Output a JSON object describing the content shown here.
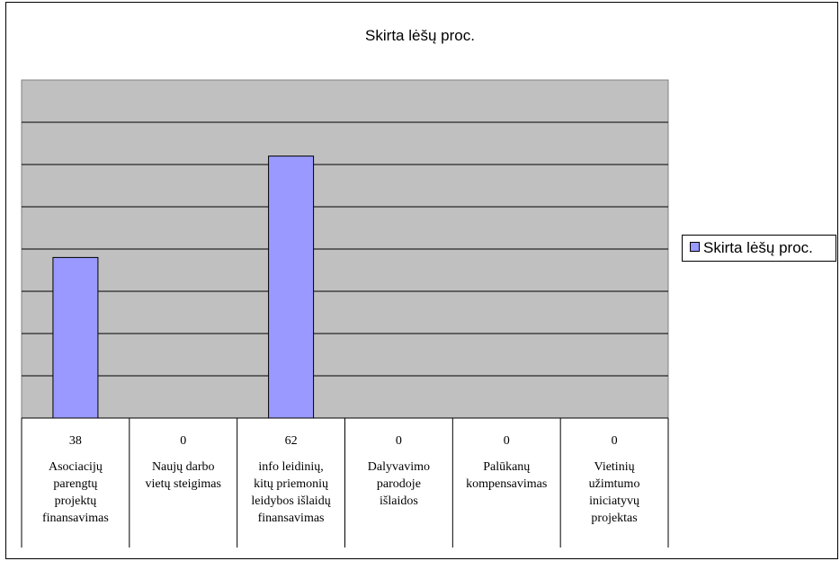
{
  "chart_data": {
    "type": "bar",
    "title": "Skirta lėšų proc.",
    "categories": [
      "Asociacijų parengtų projektų finansavimas",
      "Naujų darbo vietų steigimas",
      "info leidinių, kitų priemonių leidybos išlaidų finansavimas",
      "Dalyvavimo parodoje išlaidos",
      "Palūkanų kompensavimas",
      "Vietinių užimtumo iniciatyvų projektas"
    ],
    "category_lines": [
      [
        "Asociacijų",
        "parengtų",
        "projektų",
        "finansavimas"
      ],
      [
        "Naujų darbo",
        "vietų steigimas"
      ],
      [
        "info leidinių,",
        "kitų priemonių",
        "leidybos išlaidų",
        "finansavimas"
      ],
      [
        "Dalyvavimo",
        "parodoje",
        "išlaidos"
      ],
      [
        "Palūkanų",
        "kompensavimas"
      ],
      [
        "Vietinių",
        "užimtumo",
        "iniciatyvų",
        "projektas"
      ]
    ],
    "series": [
      {
        "name": "Skirta lėšų proc.",
        "values": [
          38,
          0,
          62,
          0,
          0,
          0
        ]
      }
    ],
    "value_labels": [
      "38",
      "0",
      "62",
      "0",
      "0",
      "0"
    ],
    "ylim": [
      0,
      80
    ],
    "y_gridline_step": 10,
    "grid": true,
    "legend_position": "right",
    "colors": {
      "bar_fill": "#9999ff",
      "plot_background": "#c0c0c0",
      "gridline": "#000000"
    }
  }
}
